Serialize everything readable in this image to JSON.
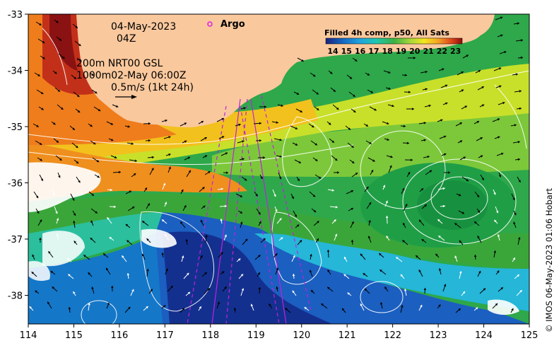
{
  "map": {
    "date_line": "04-May-2023",
    "time_line": "04Z",
    "contour_line": "200m  NRT00 GSL",
    "depth_line": "1000m02-May 06:00Z",
    "scale_line": "0.5m/s (1kt 24h)",
    "argo_label": "Argo",
    "colorbar_title": "Filled 4h comp, p50, All Sats",
    "colorbar_ticks": [
      "14",
      "15",
      "16",
      "17",
      "18",
      "19",
      "20",
      "21",
      "22",
      "23"
    ],
    "credit": "© IMOS 06-May-2023 01:06 Hobart",
    "lon_ticks": [
      "114",
      "115",
      "116",
      "117",
      "118",
      "119",
      "120",
      "121",
      "122",
      "123",
      "124",
      "125"
    ],
    "lat_ticks": [
      "-33",
      "-34",
      "-35",
      "-36",
      "-37",
      "-38"
    ],
    "colors": {
      "land": "#f9c89d",
      "argo": "#e020e0",
      "track": "#c020e0"
    }
  }
}
